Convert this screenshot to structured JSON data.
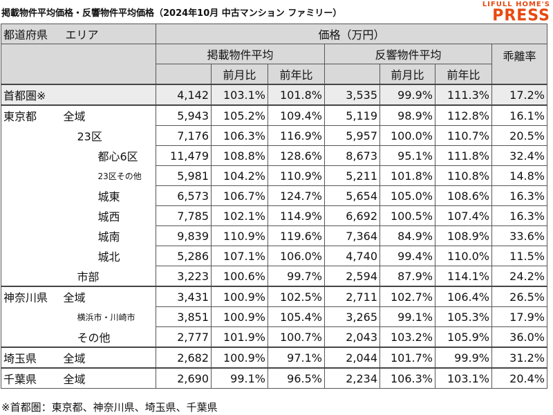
{
  "title": "掲載物件平均価格・反響物件平均価格（2024年10月 中古マンション ファミリー）",
  "logo": {
    "line1": "LIFULL HOME'S",
    "line2": "PRESS",
    "color": "#e8490f"
  },
  "header": {
    "pref": "都道府県",
    "area": "エリア",
    "price": "価格（万円）",
    "listed": "掲載物件平均",
    "inquiry": "反響物件平均",
    "gap": "乖離率",
    "mom": "前月比",
    "yoy": "前年比"
  },
  "rows": [
    {
      "pref": "首都圏※",
      "area": "",
      "listed": "4,142",
      "l_mom": "103.1%",
      "l_yoy": "101.8%",
      "inq": "3,535",
      "i_mom": "99.9%",
      "i_yoy": "111.3%",
      "gap": "17.2%"
    },
    {
      "pref": "東京都",
      "area": "全域",
      "listed": "5,943",
      "l_mom": "105.2%",
      "l_yoy": "109.4%",
      "inq": "5,119",
      "i_mom": "98.9%",
      "i_yoy": "112.8%",
      "gap": "16.1%"
    },
    {
      "pref": "",
      "area": "23区",
      "listed": "7,176",
      "l_mom": "106.3%",
      "l_yoy": "116.9%",
      "inq": "5,957",
      "i_mom": "100.0%",
      "i_yoy": "110.7%",
      "gap": "20.5%"
    },
    {
      "pref": "",
      "area": "都心6区",
      "listed": "11,479",
      "l_mom": "108.8%",
      "l_yoy": "128.6%",
      "inq": "8,673",
      "i_mom": "95.1%",
      "i_yoy": "111.8%",
      "gap": "32.4%"
    },
    {
      "pref": "",
      "area": "23区その他",
      "listed": "5,981",
      "l_mom": "104.2%",
      "l_yoy": "110.9%",
      "inq": "5,211",
      "i_mom": "101.8%",
      "i_yoy": "110.8%",
      "gap": "14.8%"
    },
    {
      "pref": "",
      "area": "城東",
      "listed": "6,573",
      "l_mom": "106.7%",
      "l_yoy": "124.7%",
      "inq": "5,654",
      "i_mom": "105.0%",
      "i_yoy": "108.6%",
      "gap": "16.3%"
    },
    {
      "pref": "",
      "area": "城西",
      "listed": "7,785",
      "l_mom": "102.1%",
      "l_yoy": "114.9%",
      "inq": "6,692",
      "i_mom": "100.5%",
      "i_yoy": "107.4%",
      "gap": "16.3%"
    },
    {
      "pref": "",
      "area": "城南",
      "listed": "9,839",
      "l_mom": "110.9%",
      "l_yoy": "119.6%",
      "inq": "7,364",
      "i_mom": "84.9%",
      "i_yoy": "108.9%",
      "gap": "33.6%"
    },
    {
      "pref": "",
      "area": "城北",
      "listed": "5,286",
      "l_mom": "107.1%",
      "l_yoy": "106.0%",
      "inq": "4,740",
      "i_mom": "99.4%",
      "i_yoy": "110.0%",
      "gap": "11.5%"
    },
    {
      "pref": "",
      "area": "市部",
      "listed": "3,223",
      "l_mom": "100.6%",
      "l_yoy": "99.7%",
      "inq": "2,594",
      "i_mom": "87.9%",
      "i_yoy": "114.1%",
      "gap": "24.2%"
    },
    {
      "pref": "神奈川県",
      "area": "全域",
      "listed": "3,431",
      "l_mom": "100.9%",
      "l_yoy": "102.5%",
      "inq": "2,711",
      "i_mom": "102.7%",
      "i_yoy": "106.4%",
      "gap": "26.5%"
    },
    {
      "pref": "",
      "area": "横浜市・川崎市",
      "listed": "3,851",
      "l_mom": "100.9%",
      "l_yoy": "105.4%",
      "inq": "3,265",
      "i_mom": "99.1%",
      "i_yoy": "105.3%",
      "gap": "17.9%"
    },
    {
      "pref": "",
      "area": "その他",
      "listed": "2,777",
      "l_mom": "101.9%",
      "l_yoy": "100.7%",
      "inq": "2,043",
      "i_mom": "103.2%",
      "i_yoy": "105.9%",
      "gap": "36.0%"
    },
    {
      "pref": "埼玉県",
      "area": "全域",
      "listed": "2,682",
      "l_mom": "100.9%",
      "l_yoy": "97.1%",
      "inq": "2,044",
      "i_mom": "101.7%",
      "i_yoy": "99.9%",
      "gap": "31.2%"
    },
    {
      "pref": "千葉県",
      "area": "全域",
      "listed": "2,690",
      "l_mom": "99.1%",
      "l_yoy": "96.5%",
      "inq": "2,234",
      "i_mom": "106.3%",
      "i_yoy": "103.1%",
      "gap": "20.4%"
    }
  ],
  "footnote": "※首都圏：東京都、神奈川県、埼玉県、千葉県"
}
